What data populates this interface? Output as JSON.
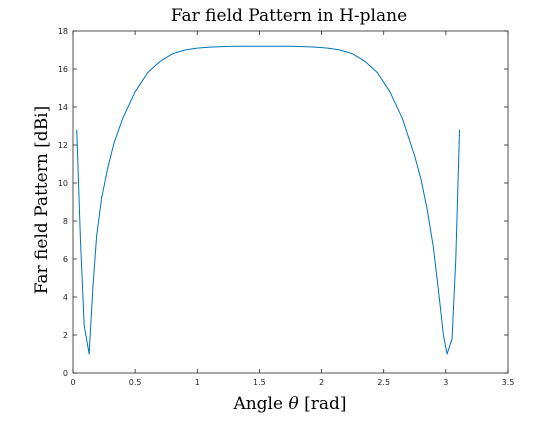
{
  "chart_data": {
    "type": "line",
    "title": "Far field Pattern in H-plane",
    "xlabel": "Angle θ [rad]",
    "ylabel": "Far field Pattern [dBi]",
    "xlim": [
      0,
      3.5
    ],
    "ylim": [
      0,
      18
    ],
    "xticks": [
      0,
      0.5,
      1,
      1.5,
      2,
      2.5,
      3,
      3.5
    ],
    "xtick_labels": [
      "0",
      "0.5",
      "1",
      "1.5",
      "2",
      "2.5",
      "3",
      "3.5"
    ],
    "yticks": [
      0,
      2,
      4,
      6,
      8,
      10,
      12,
      14,
      16,
      18
    ],
    "ytick_labels": [
      "0",
      "2",
      "4",
      "6",
      "8",
      "10",
      "12",
      "14",
      "16",
      "18"
    ],
    "grid": false,
    "line_color": "#0072BD",
    "series": [
      {
        "x": [
          0.03,
          0.06,
          0.09,
          0.13,
          0.16,
          0.19,
          0.23,
          0.28,
          0.33,
          0.4,
          0.5,
          0.6,
          0.7,
          0.8,
          0.9,
          1.0,
          1.1,
          1.2,
          1.3,
          1.4,
          1.5,
          1.57,
          1.65,
          1.75,
          1.85,
          1.95,
          2.05,
          2.15,
          2.25,
          2.35,
          2.45,
          2.55,
          2.65,
          2.75,
          2.8,
          2.85,
          2.9,
          2.95,
          2.98,
          3.01,
          3.05,
          3.08,
          3.11
        ],
        "y": [
          12.8,
          7.0,
          2.5,
          1.0,
          4.5,
          7.2,
          9.2,
          10.8,
          12.1,
          13.4,
          14.8,
          15.8,
          16.4,
          16.8,
          17.0,
          17.1,
          17.15,
          17.18,
          17.2,
          17.2,
          17.2,
          17.2,
          17.2,
          17.2,
          17.18,
          17.15,
          17.1,
          17.0,
          16.8,
          16.4,
          15.8,
          14.8,
          13.4,
          11.4,
          10.2,
          8.6,
          6.6,
          3.8,
          2.0,
          1.0,
          1.8,
          6.0,
          12.8
        ]
      }
    ]
  }
}
